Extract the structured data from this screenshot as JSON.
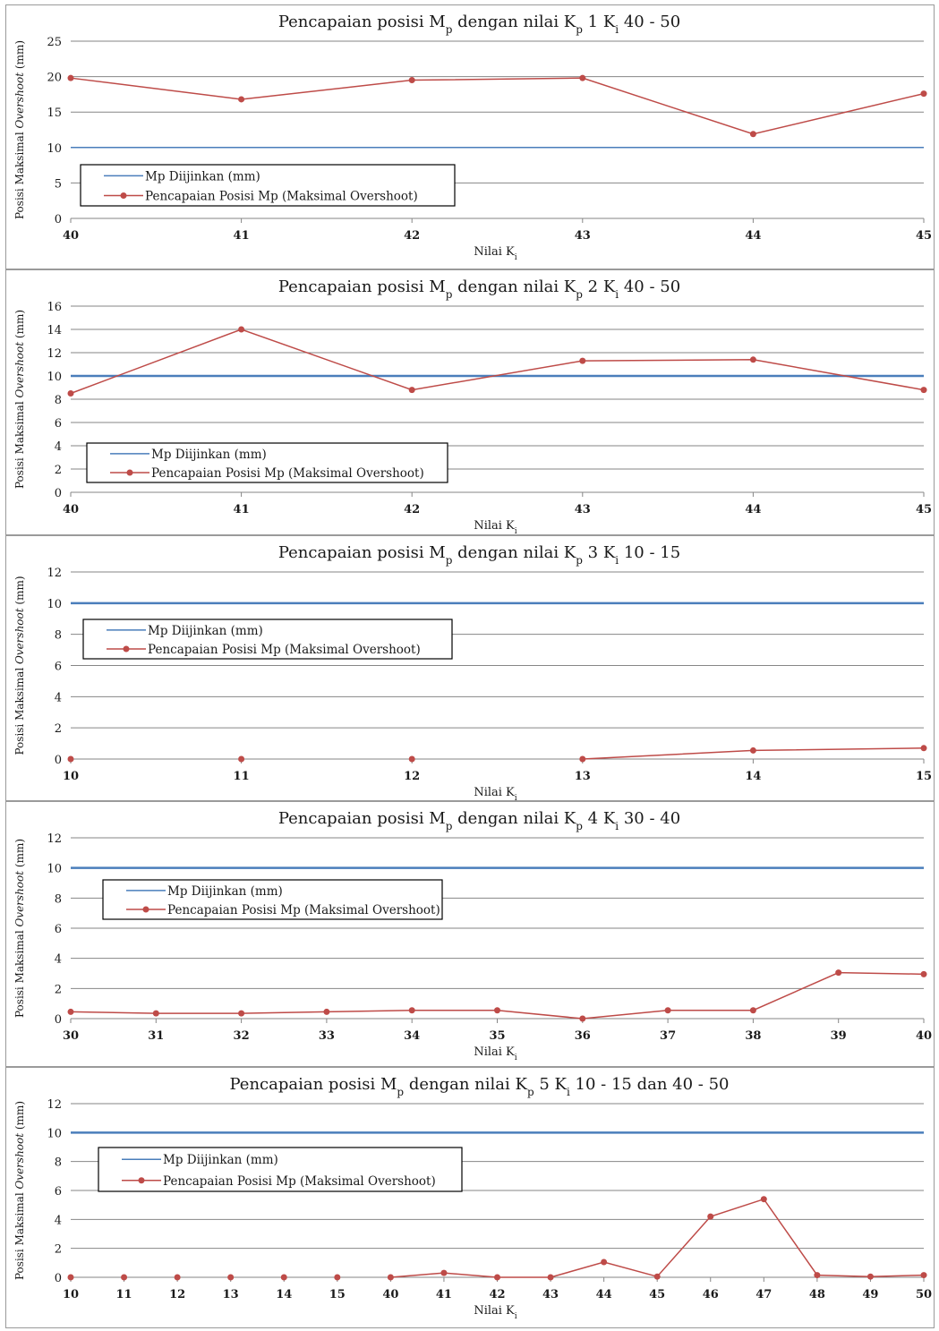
{
  "colors": {
    "allowed": "#4a7ebb",
    "achieved": "#be4b48",
    "grid": "#868686",
    "axis": "#868686"
  },
  "legend": {
    "allowed": "Mp Diijinkan (mm)",
    "achieved": "Pencapaian Posisi Mp (Maksimal Overshoot)"
  },
  "ylabel_prefix": "Posisi Maksimal ",
  "ylabel_italic": "Overshoot",
  "ylabel_suffix": " (mm)",
  "chart_data": [
    {
      "type": "line",
      "title_pre": "Pencapaian  posisi  M",
      "title_sub1": "p",
      "title_mid": " dengan  nilai  K",
      "title_sub2": "p",
      "title_post": " 1  K",
      "title_sub3": "i",
      "title_end": " 40 - 50",
      "xlabel": "Nilai K",
      "xlabel_sub": "i",
      "categories": [
        "40",
        "41",
        "42",
        "43",
        "44",
        "45"
      ],
      "ylim": [
        0,
        25
      ],
      "yticks": [
        0,
        5,
        10,
        15,
        20,
        25
      ],
      "series": [
        {
          "name": "Mp Diijinkan (mm)",
          "values": [
            10,
            10,
            10,
            10,
            10,
            10
          ]
        },
        {
          "name": "Pencapaian Posisi Mp (Maksimal Overshoot)",
          "values": [
            19.8,
            16.8,
            19.5,
            19.8,
            11.9,
            17.6
          ]
        }
      ]
    },
    {
      "type": "line",
      "title_pre": "Pencapaian  posisi  M",
      "title_sub1": "p",
      "title_mid": " dengan  nilai  K",
      "title_sub2": "p",
      "title_post": " 2  K",
      "title_sub3": "i",
      "title_end": " 40 - 50",
      "xlabel": "Nilai K",
      "xlabel_sub": "i",
      "categories": [
        "40",
        "41",
        "42",
        "43",
        "44",
        "45"
      ],
      "ylim": [
        0,
        16
      ],
      "yticks": [
        0,
        2,
        4,
        6,
        8,
        10,
        12,
        14,
        16
      ],
      "series": [
        {
          "name": "Mp Diijinkan (mm)",
          "values": [
            10,
            10,
            10,
            10,
            10,
            10
          ]
        },
        {
          "name": "Pencapaian Posisi Mp (Maksimal Overshoot)",
          "values": [
            8.5,
            14.0,
            8.8,
            11.3,
            11.4,
            8.8
          ]
        }
      ]
    },
    {
      "type": "line",
      "title_pre": "Pencapaian  posisi  M",
      "title_sub1": "p",
      "title_mid": " dengan  nilai  K",
      "title_sub2": "p",
      "title_post": " 3  K",
      "title_sub3": "i",
      "title_end": " 10 - 15",
      "xlabel": "Nilai K",
      "xlabel_sub": "i",
      "categories": [
        "10",
        "11",
        "12",
        "13",
        "14",
        "15"
      ],
      "ylim": [
        0,
        12
      ],
      "yticks": [
        0,
        2,
        4,
        6,
        8,
        10,
        12
      ],
      "series": [
        {
          "name": "Mp Diijinkan (mm)",
          "values": [
            10,
            10,
            10,
            10,
            10,
            10
          ]
        },
        {
          "name": "Pencapaian Posisi Mp (Maksimal Overshoot)",
          "values": [
            0,
            0,
            0,
            0,
            0.55,
            0.7
          ]
        }
      ],
      "achieved_segments": [
        [
          0
        ],
        [
          1
        ],
        [
          2
        ],
        [
          3,
          4,
          5
        ]
      ]
    },
    {
      "type": "line",
      "title_pre": "Pencapaian  posisi  M",
      "title_sub1": "p",
      "title_mid": " dengan  nilai  K",
      "title_sub2": "p",
      "title_post": " 4  K",
      "title_sub3": "i",
      "title_end": " 30 - 40",
      "xlabel": "Nilai K",
      "xlabel_sub": "i",
      "categories": [
        "30",
        "31",
        "32",
        "33",
        "34",
        "35",
        "36",
        "37",
        "38",
        "39",
        "40"
      ],
      "ylim": [
        0,
        12
      ],
      "yticks": [
        0,
        2,
        4,
        6,
        8,
        10,
        12
      ],
      "series": [
        {
          "name": "Mp Diijinkan (mm)",
          "values": [
            10,
            10,
            10,
            10,
            10,
            10,
            10,
            10,
            10,
            10,
            10
          ]
        },
        {
          "name": "Pencapaian Posisi Mp (Maksimal Overshoot)",
          "values": [
            0.45,
            0.35,
            0.35,
            0.45,
            0.55,
            0.55,
            0,
            0.55,
            0.55,
            3.05,
            2.95
          ]
        }
      ]
    },
    {
      "type": "line",
      "title_pre": "Pencapaian  posisi  M",
      "title_sub1": "p",
      "title_mid": " dengan  nilai  K",
      "title_sub2": "p",
      "title_post": " 5  K",
      "title_sub3": "i",
      "title_end": " 10 - 15 dan  40 - 50",
      "xlabel": "Nilai K",
      "xlabel_sub": "i",
      "categories": [
        "10",
        "11",
        "12",
        "13",
        "14",
        "15",
        "40",
        "41",
        "42",
        "43",
        "44",
        "45",
        "46",
        "47",
        "48",
        "49",
        "50"
      ],
      "ylim": [
        0,
        12
      ],
      "yticks": [
        0,
        2,
        4,
        6,
        8,
        10,
        12
      ],
      "series": [
        {
          "name": "Mp Diijinkan (mm)",
          "values": [
            10,
            10,
            10,
            10,
            10,
            10,
            10,
            10,
            10,
            10,
            10,
            10,
            10,
            10,
            10,
            10,
            10
          ]
        },
        {
          "name": "Pencapaian Posisi Mp (Maksimal Overshoot)",
          "values": [
            0,
            0,
            0,
            0,
            0,
            0,
            0,
            0.3,
            0,
            0,
            1.05,
            0.05,
            4.2,
            5.4,
            0.15,
            0.05,
            0.15
          ]
        }
      ],
      "achieved_segments": [
        [
          0
        ],
        [
          1
        ],
        [
          2
        ],
        [
          3
        ],
        [
          4
        ],
        [
          5
        ],
        [
          6,
          7,
          8,
          9,
          10,
          11,
          12,
          13,
          14,
          15,
          16
        ]
      ]
    }
  ]
}
